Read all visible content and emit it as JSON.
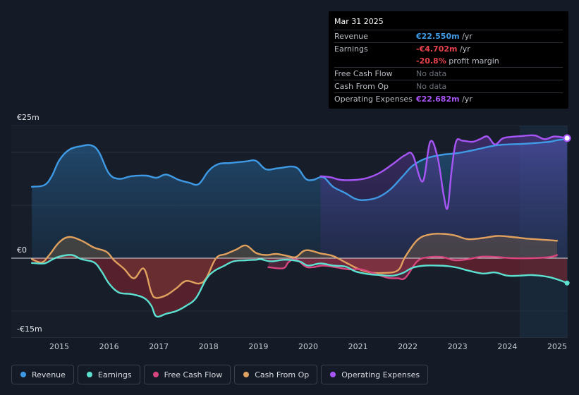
{
  "chart_data": {
    "type": "line",
    "currency": "EUR",
    "unit": "m",
    "ylim": [
      -15,
      25
    ],
    "y_axis_labels": [
      "€25m",
      "€0",
      "-€15m"
    ],
    "x_tick_labels": [
      "2015",
      "2016",
      "2017",
      "2018",
      "2019",
      "2020",
      "2021",
      "2022",
      "2023",
      "2024",
      "2025"
    ],
    "x_ticks": [
      2015,
      2016,
      2017,
      2018,
      2019,
      2020,
      2021,
      2022,
      2023,
      2024,
      2025
    ],
    "forecast_shade_from": 2024.25,
    "opex_fill_from": 2020.25,
    "series": [
      {
        "name": "Revenue",
        "color": "#3f9ae6",
        "x": [
          2014.45,
          2014.7,
          2014.85,
          2015.0,
          2015.2,
          2015.45,
          2015.65,
          2015.8,
          2016.0,
          2016.2,
          2016.45,
          2016.75,
          2016.95,
          2017.15,
          2017.4,
          2017.6,
          2017.8,
          2018.0,
          2018.2,
          2018.45,
          2018.75,
          2018.95,
          2019.15,
          2019.4,
          2019.75,
          2019.95,
          2020.1,
          2020.3,
          2020.5,
          2020.75,
          2020.95,
          2021.15,
          2021.4,
          2021.65,
          2021.9,
          2022.1,
          2022.35,
          2022.65,
          2022.95,
          2023.2,
          2023.5,
          2023.75,
          2024.0,
          2024.3,
          2024.6,
          2024.85,
          2025.0,
          2025.2
        ],
        "y": [
          13.5,
          13.8,
          15.5,
          18.5,
          20.5,
          21.2,
          21.3,
          20.0,
          16.0,
          15.0,
          15.5,
          15.6,
          15.2,
          15.8,
          14.8,
          14.3,
          14.0,
          16.5,
          17.8,
          18.0,
          18.3,
          18.4,
          16.8,
          17.0,
          17.2,
          15.0,
          14.8,
          15.3,
          13.5,
          12.3,
          11.2,
          11.0,
          11.5,
          13.0,
          15.5,
          17.5,
          18.8,
          19.5,
          19.8,
          20.2,
          20.8,
          21.3,
          21.5,
          21.6,
          21.8,
          22.0,
          22.3,
          22.55
        ]
      },
      {
        "name": "Earnings",
        "color": "#5ce0cf",
        "x": [
          2014.45,
          2014.7,
          2014.85,
          2015.0,
          2015.25,
          2015.45,
          2015.7,
          2015.85,
          2016.0,
          2016.2,
          2016.45,
          2016.7,
          2016.85,
          2016.95,
          2017.15,
          2017.35,
          2017.55,
          2017.75,
          2017.95,
          2018.1,
          2018.3,
          2018.5,
          2018.75,
          2018.95,
          2019.05,
          2019.25,
          2019.5,
          2019.7,
          2019.85,
          2020.0,
          2020.25,
          2020.5,
          2020.75,
          2020.95,
          2021.2,
          2021.45,
          2021.7,
          2021.9,
          2022.1,
          2022.35,
          2022.6,
          2022.8,
          2023.0,
          2023.2,
          2023.5,
          2023.75,
          2024.0,
          2024.25,
          2024.5,
          2024.8,
          2025.0,
          2025.2
        ],
        "y": [
          -0.9,
          -1.0,
          -0.3,
          0.3,
          0.6,
          -0.2,
          -0.8,
          -2.5,
          -4.8,
          -6.5,
          -6.8,
          -7.5,
          -9.0,
          -11.0,
          -10.5,
          -10.0,
          -9.0,
          -7.5,
          -4.0,
          -2.5,
          -1.5,
          -0.6,
          -0.4,
          -0.3,
          -0.2,
          -0.6,
          -0.3,
          -0.4,
          -0.7,
          -1.4,
          -1.0,
          -1.4,
          -1.6,
          -2.5,
          -3.0,
          -3.2,
          -3.3,
          -2.8,
          -1.8,
          -1.4,
          -1.4,
          -1.5,
          -1.8,
          -2.3,
          -2.9,
          -2.7,
          -3.3,
          -3.3,
          -3.2,
          -3.5,
          -4.0,
          -4.7
        ]
      },
      {
        "name": "Free Cash Flow",
        "color": "#d8467f",
        "x": [
          2019.2,
          2019.5,
          2019.6,
          2019.75,
          2019.95,
          2020.1,
          2020.3,
          2020.55,
          2020.8,
          2021.05,
          2021.3,
          2021.6,
          2021.8,
          2021.95,
          2022.2,
          2022.45,
          2022.7,
          2022.95,
          2023.2,
          2023.5,
          2023.8,
          2024.1,
          2024.5,
          2024.85,
          2025.0
        ],
        "y": [
          -1.7,
          -1.9,
          -0.8,
          -0.2,
          -1.6,
          -1.7,
          -1.4,
          -1.7,
          -2.1,
          -2.1,
          -2.8,
          -3.7,
          -3.8,
          -3.7,
          -0.5,
          0.2,
          0.2,
          -0.4,
          -0.2,
          0.3,
          0.2,
          0.0,
          0.0,
          0.2,
          0.6
        ]
      },
      {
        "name": "Cash From Op",
        "color": "#e0a15e",
        "x": [
          2014.45,
          2014.65,
          2014.8,
          2015.0,
          2015.2,
          2015.45,
          2015.7,
          2015.95,
          2016.1,
          2016.3,
          2016.5,
          2016.7,
          2016.85,
          2016.95,
          2017.15,
          2017.35,
          2017.55,
          2017.8,
          2017.95,
          2018.15,
          2018.35,
          2018.55,
          2018.75,
          2018.95,
          2019.15,
          2019.35,
          2019.55,
          2019.75,
          2019.95,
          2020.25,
          2020.5,
          2020.75,
          2021.0,
          2021.25,
          2021.5,
          2021.8,
          2021.95,
          2022.2,
          2022.45,
          2022.7,
          2022.95,
          2023.2,
          2023.5,
          2023.8,
          2024.1,
          2024.4,
          2024.7,
          2025.0
        ],
        "y": [
          -0.2,
          -0.8,
          0.6,
          3.0,
          4.0,
          3.3,
          2.0,
          1.2,
          -0.4,
          -2.0,
          -3.8,
          -2.0,
          -6.5,
          -7.5,
          -7.0,
          -5.7,
          -4.3,
          -4.8,
          -3.8,
          0.0,
          0.8,
          1.6,
          2.4,
          1.0,
          0.6,
          0.8,
          0.5,
          0.2,
          1.5,
          0.9,
          0.4,
          -0.8,
          -2.0,
          -2.7,
          -2.8,
          -2.3,
          0.3,
          3.5,
          4.5,
          4.6,
          4.3,
          3.6,
          3.8,
          4.2,
          4.0,
          3.7,
          3.5,
          3.3
        ]
      },
      {
        "name": "Operating Expenses",
        "color": "#a855f7",
        "x": [
          2020.25,
          2020.45,
          2020.65,
          2020.95,
          2021.2,
          2021.45,
          2021.7,
          2021.95,
          2022.1,
          2022.3,
          2022.45,
          2022.6,
          2022.72,
          2022.8,
          2022.88,
          2022.97,
          2023.1,
          2023.3,
          2023.45,
          2023.6,
          2023.75,
          2023.9,
          2024.05,
          2024.3,
          2024.55,
          2024.75,
          2024.95,
          2025.2
        ],
        "y": [
          15.5,
          15.3,
          14.8,
          14.8,
          15.2,
          16.2,
          17.8,
          19.5,
          19.5,
          14.5,
          22.0,
          19.0,
          12.0,
          9.5,
          16.5,
          22.0,
          22.2,
          22.0,
          22.5,
          23.0,
          21.5,
          22.6,
          22.9,
          23.1,
          23.2,
          22.5,
          23.0,
          22.68
        ]
      }
    ]
  },
  "tooltip": {
    "date": "Mar 31 2025",
    "rows": [
      {
        "label": "Revenue",
        "value": "€22.550m",
        "suffix": " /yr"
      },
      {
        "label": "Earnings",
        "value": "-€4.702m",
        "suffix": " /yr"
      },
      {
        "label": "",
        "value": "-20.8%",
        "suffix": " profit margin"
      },
      {
        "label": "Free Cash Flow",
        "value": "No data"
      },
      {
        "label": "Cash From Op",
        "value": "No data"
      },
      {
        "label": "Operating Expenses",
        "value": "€22.682m",
        "suffix": " /yr"
      }
    ]
  },
  "legend": [
    {
      "label": "Revenue",
      "color": "#3f9ae6"
    },
    {
      "label": "Earnings",
      "color": "#5ce0cf"
    },
    {
      "label": "Free Cash Flow",
      "color": "#d8467f"
    },
    {
      "label": "Cash From Op",
      "color": "#e0a15e"
    },
    {
      "label": "Operating Expenses",
      "color": "#a855f7"
    }
  ]
}
